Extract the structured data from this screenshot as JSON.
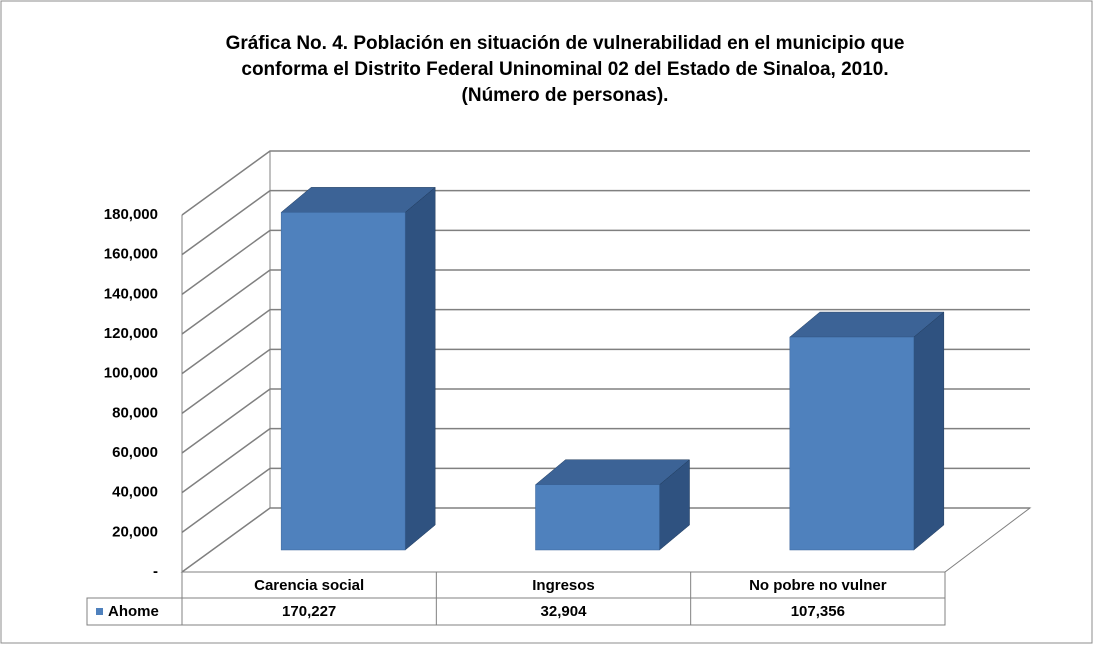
{
  "chart_data": {
    "type": "bar3d",
    "title": [
      "Gráfica No. 4. Población en situación de vulnerabilidad en el municipio que",
      "conforma el Distrito Federal Uninominal 02 del Estado de Sinaloa, 2010.",
      "(Número de personas)."
    ],
    "categories": [
      "Carencia social",
      "Ingresos",
      "No pobre  no vulner"
    ],
    "series": [
      {
        "name": "Ahome",
        "color": "#4f81bd",
        "values": [
          170227,
          32904,
          107356
        ],
        "value_labels": [
          "170,227",
          "32,904",
          "107,356"
        ]
      }
    ],
    "ylim": [
      0,
      180000
    ],
    "yticks": [
      {
        "value": 0,
        "label": "-"
      },
      {
        "value": 20000,
        "label": "20,000"
      },
      {
        "value": 40000,
        "label": "40,000"
      },
      {
        "value": 60000,
        "label": "60,000"
      },
      {
        "value": 80000,
        "label": "80,000"
      },
      {
        "value": 100000,
        "label": "100,000"
      },
      {
        "value": 120000,
        "label": "120,000"
      },
      {
        "value": 140000,
        "label": "140,000"
      },
      {
        "value": 160000,
        "label": "160,000"
      },
      {
        "value": 180000,
        "label": "180,000"
      }
    ],
    "grid": true,
    "legend": "table"
  }
}
